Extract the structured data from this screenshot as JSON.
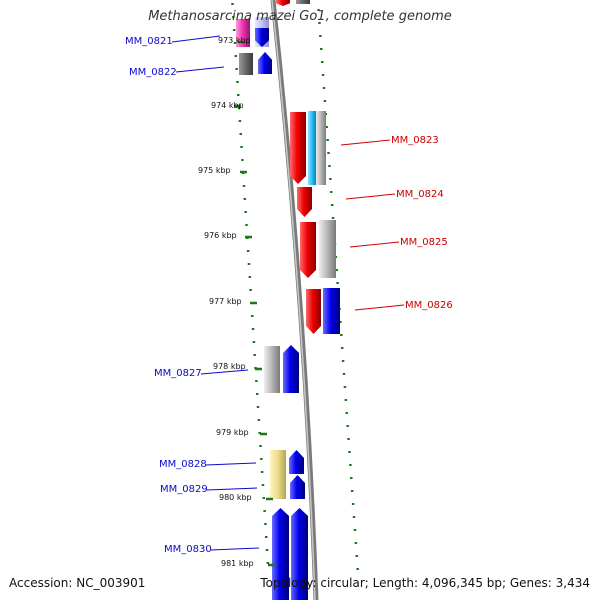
{
  "title": "Methanosarcina mazei Go1, complete genome",
  "accession": "Accession: NC_003901",
  "summary": "Topology: circular; Length: 4,096,345 bp; Genes: 3,434",
  "colors": {
    "forward": "#0a0acc",
    "reverse": "#cc0000",
    "backbone": "#888888",
    "ticks": "#1a7a1a"
  },
  "ruler": [
    {
      "label": "973 kbp",
      "kb": 973
    },
    {
      "label": "974 kbp",
      "kb": 974
    },
    {
      "label": "975 kbp",
      "kb": 975
    },
    {
      "label": "976 kbp",
      "kb": 976
    },
    {
      "label": "977 kbp",
      "kb": 977
    },
    {
      "label": "978 kbp",
      "kb": 978
    },
    {
      "label": "979 kbp",
      "kb": 979
    },
    {
      "label": "980 kbp",
      "kb": 980
    },
    {
      "label": "981 kbp",
      "kb": 981
    }
  ],
  "genes": [
    {
      "name": "MM_0821",
      "strand": "reverse-side"
    },
    {
      "name": "MM_0822",
      "strand": "reverse-side"
    },
    {
      "name": "MM_0823",
      "strand": "forward-side"
    },
    {
      "name": "MM_0824",
      "strand": "forward-side"
    },
    {
      "name": "MM_0825",
      "strand": "forward-side"
    },
    {
      "name": "MM_0826",
      "strand": "forward-side"
    },
    {
      "name": "MM_0827",
      "strand": "reverse-side"
    },
    {
      "name": "MM_0828",
      "strand": "reverse-side"
    },
    {
      "name": "MM_0829",
      "strand": "reverse-side"
    },
    {
      "name": "MM_0830",
      "strand": "reverse-side"
    }
  ]
}
